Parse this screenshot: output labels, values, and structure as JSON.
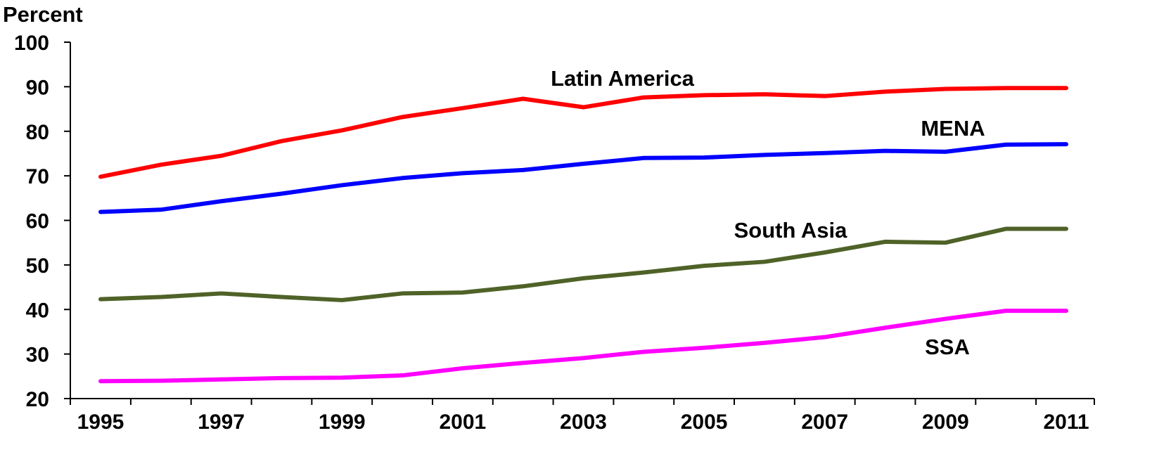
{
  "chart_data": {
    "type": "line",
    "ylabel": "Percent",
    "ylim": [
      20,
      100
    ],
    "yticks": [
      20,
      30,
      40,
      50,
      60,
      70,
      80,
      90,
      100
    ],
    "xlim": [
      1995,
      2011
    ],
    "x": [
      1995,
      1996,
      1997,
      1998,
      1999,
      2000,
      2001,
      2002,
      2003,
      2004,
      2005,
      2006,
      2007,
      2008,
      2009,
      2010,
      2011
    ],
    "xtick_labels": [
      "1995",
      "1997",
      "1999",
      "2001",
      "2003",
      "2005",
      "2007",
      "2009",
      "2011"
    ],
    "grid": false,
    "series": [
      {
        "name": "Latin America",
        "color": "#ff0000",
        "values": [
          69.8,
          72.5,
          74.5,
          77.8,
          80.2,
          83.2,
          85.2,
          87.3,
          85.4,
          87.6,
          88.1,
          88.3,
          87.9,
          88.9,
          89.5,
          89.7,
          89.7
        ]
      },
      {
        "name": "MENA",
        "color": "#0000ff",
        "values": [
          61.9,
          62.4,
          64.3,
          66.0,
          67.9,
          69.5,
          70.6,
          71.3,
          72.7,
          74.0,
          74.1,
          74.7,
          75.1,
          75.6,
          75.4,
          77.0,
          77.1
        ]
      },
      {
        "name": "South Asia",
        "color": "#4f6228",
        "values": [
          42.3,
          42.8,
          43.6,
          42.8,
          42.1,
          43.6,
          43.8,
          45.2,
          47.0,
          48.3,
          49.8,
          50.7,
          52.8,
          55.2,
          55.0,
          58.1,
          58.1
        ]
      },
      {
        "name": "SSA",
        "color": "#ff00ff",
        "values": [
          23.9,
          24.0,
          24.3,
          24.6,
          24.7,
          25.2,
          26.8,
          28.0,
          29.1,
          30.5,
          31.4,
          32.5,
          33.8,
          35.9,
          37.9,
          39.7,
          39.7
        ]
      }
    ]
  }
}
